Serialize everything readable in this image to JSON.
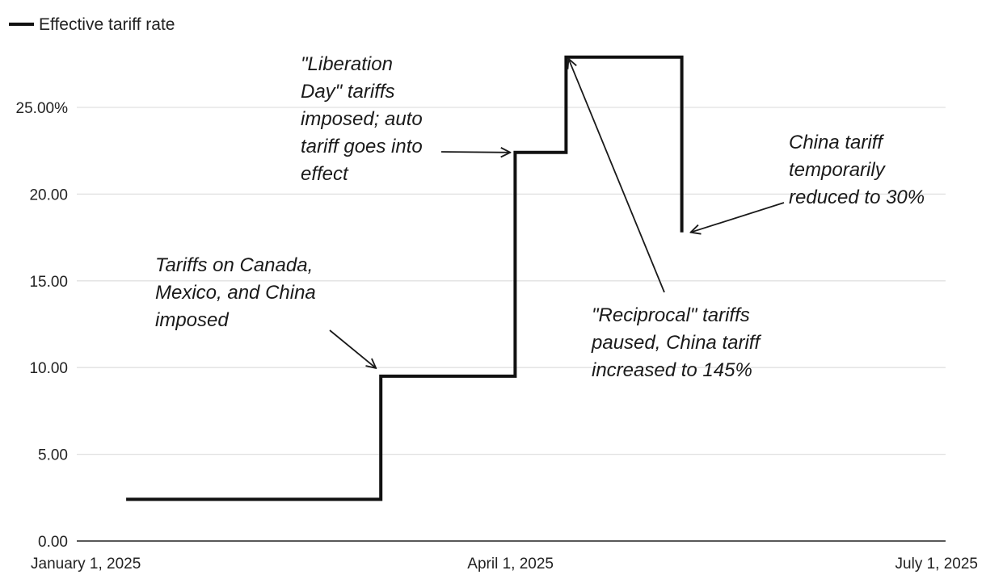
{
  "chart_data": {
    "type": "line",
    "legend": [
      "Effective tariff rate"
    ],
    "legend_position": "top-left",
    "grid": true,
    "y_tick_labels": [
      "0.00",
      "5.00",
      "10.00",
      "15.00",
      "20.00",
      "25.00%"
    ],
    "y_ticks": [
      0,
      5,
      10,
      15,
      20,
      25
    ],
    "ylim": [
      0,
      28
    ],
    "x_tick_labels": [
      "January 1, 2025",
      "April 1, 2025",
      "July 1, 2025"
    ],
    "x_ticks": [
      "2025-01-01",
      "2025-04-01",
      "2025-07-01"
    ],
    "xlim": [
      "2025-01-01",
      "2025-07-01"
    ],
    "series": [
      {
        "name": "Effective tariff rate",
        "color": "#111111",
        "step": true,
        "points": [
          {
            "x": "2025-01-08",
            "y": 2.4
          },
          {
            "x": "2025-03-04",
            "y": 2.4
          },
          {
            "x": "2025-03-04",
            "y": 9.5
          },
          {
            "x": "2025-04-02",
            "y": 9.5
          },
          {
            "x": "2025-04-02",
            "y": 22.4
          },
          {
            "x": "2025-04-13",
            "y": 22.4
          },
          {
            "x": "2025-04-13",
            "y": 27.9
          },
          {
            "x": "2025-05-08",
            "y": 27.9
          },
          {
            "x": "2025-05-08",
            "y": 17.8
          }
        ]
      }
    ],
    "annotations": [
      {
        "lines": [
          "Tariffs on Canada,",
          "Mexico, and China",
          "imposed"
        ],
        "target": {
          "x": "2025-03-04",
          "y": 9.5
        }
      },
      {
        "lines": [
          "\"Liberation",
          "Day\" tariffs",
          "imposed; auto",
          "tariff goes into",
          "effect"
        ],
        "target": {
          "x": "2025-04-02",
          "y": 22.4
        }
      },
      {
        "lines": [
          "\"Reciprocal\" tariffs",
          "paused, China tariff",
          "increased to 145%"
        ],
        "target": {
          "x": "2025-04-13",
          "y": 27.9
        }
      },
      {
        "lines": [
          "China tariff",
          "temporarily",
          "reduced to 30%"
        ],
        "target": {
          "x": "2025-05-08",
          "y": 17.8
        }
      }
    ]
  }
}
